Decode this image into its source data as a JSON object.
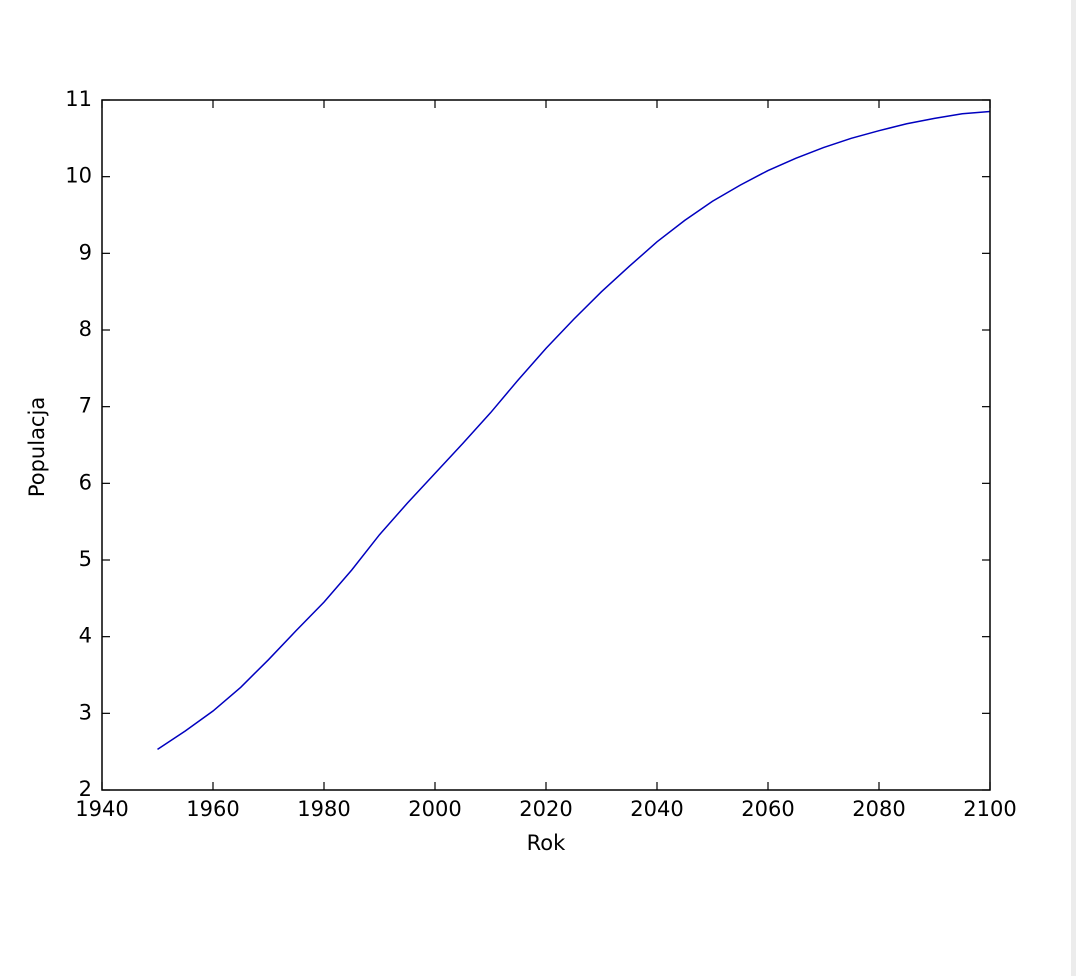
{
  "chart_data": {
    "type": "line",
    "xlabel": "Rok",
    "ylabel": "Populacja",
    "x": [
      1950,
      1955,
      1960,
      1965,
      1970,
      1975,
      1980,
      1985,
      1990,
      1995,
      2000,
      2005,
      2010,
      2015,
      2020,
      2025,
      2030,
      2035,
      2040,
      2045,
      2050,
      2055,
      2060,
      2065,
      2070,
      2075,
      2080,
      2085,
      2090,
      2095,
      2100
    ],
    "series": [
      {
        "color": "#0000bf",
        "values": [
          2.53,
          2.77,
          3.03,
          3.34,
          3.7,
          4.08,
          4.45,
          4.87,
          5.33,
          5.74,
          6.13,
          6.52,
          6.92,
          7.35,
          7.76,
          8.14,
          8.5,
          8.83,
          9.15,
          9.43,
          9.68,
          9.89,
          10.08,
          10.24,
          10.38,
          10.5,
          10.6,
          10.69,
          10.76,
          10.82,
          10.85
        ]
      }
    ],
    "xlim": [
      1940,
      2100
    ],
    "ylim": [
      2,
      11
    ],
    "xticks": [
      1940,
      1960,
      1980,
      2000,
      2020,
      2040,
      2060,
      2080,
      2100
    ],
    "yticks": [
      2,
      3,
      4,
      5,
      6,
      7,
      8,
      9,
      10,
      11
    ],
    "grid": false
  }
}
